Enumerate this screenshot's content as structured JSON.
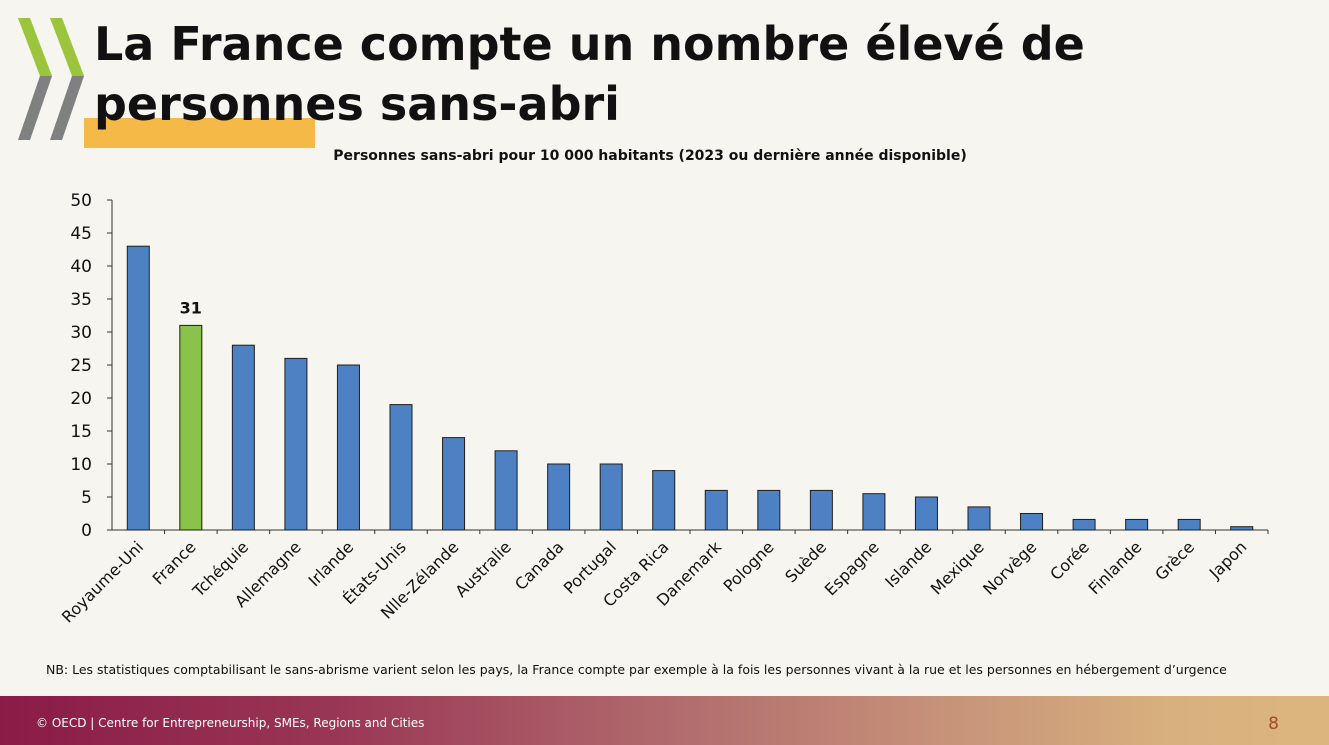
{
  "slide": {
    "title": "La France compte un nombre élevé de personnes sans-abri",
    "note": "NB: Les statistiques comptabilisant le sans-abrisme varient selon les pays, la France compte par exemple à la fois les personnes vivant à la rue et les personnes en hébergement d’urgence",
    "footer": "© OECD | Centre for Entrepreneurship, SMEs, Regions and Cities",
    "page_number": "8"
  },
  "colors": {
    "bar": "#4e81c4",
    "highlight_bar": "#8bc34a",
    "title_highlight": "#f4b946",
    "logo_green": "#9bc53d",
    "logo_gray": "#7f8080"
  },
  "chart_data": {
    "type": "bar",
    "title": "Personnes sans-abri pour 10 000 habitants (2023 ou dernière année disponible)",
    "xlabel": "",
    "ylabel": "",
    "ylim": [
      0,
      50
    ],
    "yticks": [
      0,
      5,
      10,
      15,
      20,
      25,
      30,
      35,
      40,
      45,
      50
    ],
    "grid": false,
    "categories": [
      "Royaume-Uni",
      "France",
      "Tchéquie",
      "Allemagne",
      "Irlande",
      "États-Unis",
      "Nlle-Zélande",
      "Australie",
      "Canada",
      "Portugal",
      "Costa Rica",
      "Danemark",
      "Pologne",
      "Suède",
      "Espagne",
      "Islande",
      "Mexique",
      "Norvège",
      "Corée",
      "Finlande",
      "Grèce",
      "Japon"
    ],
    "values": [
      43,
      31,
      28,
      26,
      25,
      19,
      14,
      12,
      10,
      10,
      9,
      6,
      6,
      6,
      5.5,
      5,
      3.5,
      2.5,
      1.6,
      1.6,
      1.6,
      0.5
    ],
    "highlight": "France",
    "highlight_label": "31"
  }
}
